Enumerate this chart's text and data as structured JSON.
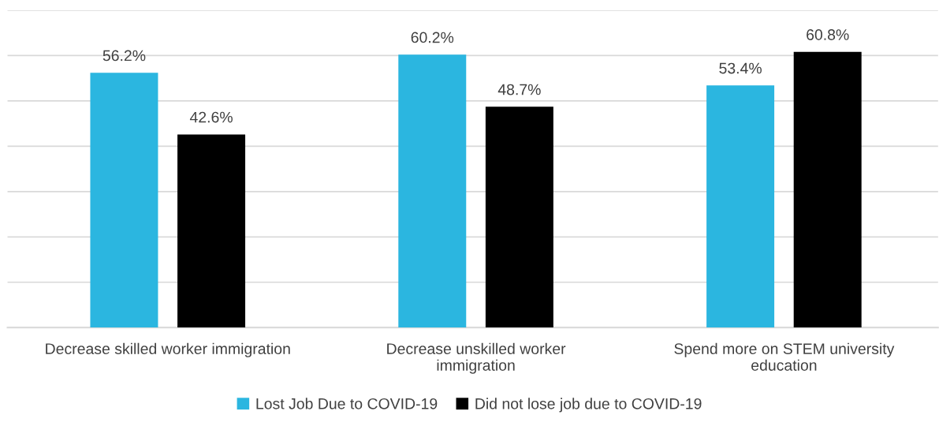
{
  "chart_data": {
    "type": "bar",
    "categories": [
      "Decrease skilled worker immigration",
      "Decrease unskilled worker\nimmigration",
      "Spend more on STEM university\neducation"
    ],
    "series": [
      {
        "name": "Lost Job Due to COVID-19",
        "color": "#2bb6e0",
        "values": [
          56.2,
          60.2,
          53.4
        ],
        "value_labels": [
          "56.2%",
          "60.2%",
          "53.4%"
        ]
      },
      {
        "name": "Did not lose job due to COVID-19",
        "color": "#000000",
        "values": [
          42.6,
          48.7,
          60.8
        ],
        "value_labels": [
          "42.6%",
          "48.7%",
          "60.8%"
        ]
      }
    ],
    "ylim": [
      0,
      70
    ],
    "yticks": [
      {
        "value": 0,
        "label": null
      },
      {
        "value": 10,
        "label": null
      },
      {
        "value": 20,
        "label": null
      },
      {
        "value": 30,
        "label": null
      },
      {
        "value": 40,
        "label": null
      },
      {
        "value": 50,
        "label": null
      },
      {
        "value": 60,
        "label": null
      },
      {
        "value": 70,
        "label": null
      }
    ],
    "tick_labels": "x",
    "grid": "y",
    "legend": "bottom"
  }
}
